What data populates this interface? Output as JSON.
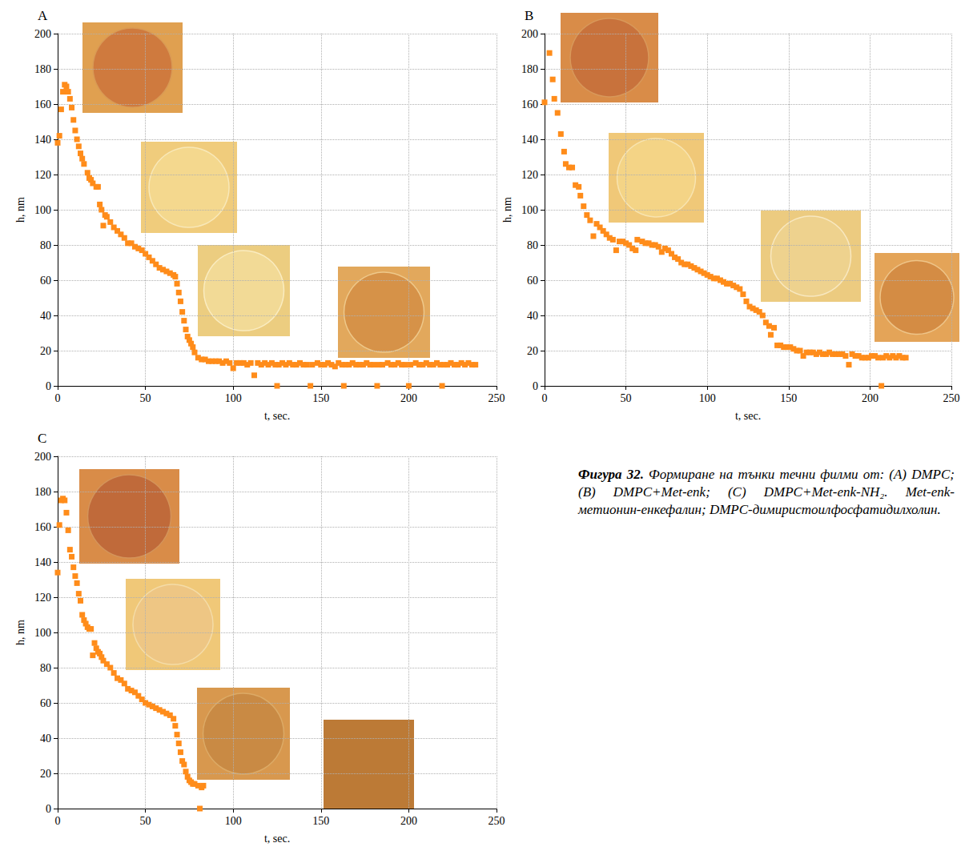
{
  "chart_data": [
    {
      "type": "scatter",
      "title": "A",
      "x_label": "t, sec.",
      "y_label": "h, nm",
      "xlim": [
        0,
        250
      ],
      "xticks": [
        0,
        50,
        100,
        150,
        200,
        250
      ],
      "ylim": [
        0,
        200
      ],
      "yticks": [
        0,
        20,
        40,
        60,
        80,
        100,
        120,
        140,
        160,
        180,
        200
      ],
      "grid": true,
      "marker": "square",
      "color": "#ff8c1a",
      "x": [
        0,
        1,
        2,
        3,
        4,
        5,
        6,
        7,
        8,
        9,
        10,
        11,
        12,
        13,
        14,
        15,
        17,
        18,
        19,
        20,
        22,
        23,
        24,
        25,
        26,
        27,
        28,
        30,
        32,
        34,
        36,
        38,
        40,
        42,
        44,
        46,
        48,
        50,
        52,
        54,
        56,
        58,
        60,
        62,
        64,
        66,
        67,
        68,
        69,
        70,
        71,
        72,
        73,
        74,
        75,
        76,
        77,
        78,
        80,
        82,
        84,
        86,
        88,
        90,
        92,
        94,
        96,
        98,
        100,
        102,
        104,
        106,
        108,
        110,
        112,
        114,
        116,
        118,
        120,
        122,
        124,
        125,
        126,
        128,
        130,
        132,
        134,
        136,
        138,
        140,
        142,
        144,
        145,
        148,
        150,
        152,
        154,
        156,
        158,
        160,
        162,
        163,
        164,
        166,
        168,
        170,
        172,
        174,
        176,
        178,
        180,
        182,
        183,
        185,
        188,
        190,
        192,
        194,
        196,
        198,
        200,
        201,
        204,
        206,
        208,
        210,
        212,
        214,
        216,
        218,
        219,
        220,
        222,
        224,
        226,
        228,
        230,
        232,
        234,
        236,
        238
      ],
      "values": [
        138,
        142,
        157,
        167,
        171,
        170,
        167,
        163,
        158,
        151,
        145,
        140,
        136,
        132,
        129,
        126,
        121,
        118,
        117,
        115,
        113,
        113,
        103,
        100,
        91,
        97,
        96,
        93,
        90,
        88,
        86,
        84,
        81,
        81,
        79,
        78,
        77,
        75,
        73,
        71,
        69,
        67,
        66,
        65,
        64,
        63,
        62,
        58,
        53,
        48,
        42,
        37,
        32,
        28,
        26,
        24,
        22,
        19,
        16,
        15,
        15,
        14,
        14,
        14,
        14,
        13,
        14,
        13,
        10,
        13,
        13,
        13,
        12,
        13,
        6,
        13,
        12,
        13,
        12,
        13,
        12,
        0,
        12,
        13,
        12,
        13,
        12,
        12,
        13,
        12,
        12,
        0,
        12,
        13,
        12,
        12,
        13,
        12,
        11,
        13,
        12,
        0,
        12,
        12,
        13,
        12,
        12,
        12,
        13,
        12,
        12,
        0,
        12,
        12,
        13,
        12,
        12,
        13,
        12,
        12,
        0,
        12,
        13,
        12,
        12,
        13,
        12,
        12,
        13,
        12,
        0,
        12,
        12,
        13,
        12,
        12,
        13,
        12,
        13,
        12,
        12
      ]
    },
    {
      "type": "scatter",
      "title": "B",
      "x_label": "t, sec.",
      "y_label": "h, nm",
      "xlim": [
        0,
        250
      ],
      "xticks": [
        0,
        50,
        100,
        150,
        200,
        250
      ],
      "ylim": [
        0,
        200
      ],
      "yticks": [
        0,
        20,
        40,
        60,
        80,
        100,
        120,
        140,
        160,
        180,
        200
      ],
      "grid": true,
      "marker": "square",
      "color": "#ff8c1a",
      "x": [
        0,
        3,
        5,
        6,
        8,
        10,
        12,
        13,
        15,
        17,
        19,
        21,
        22,
        24,
        26,
        28,
        30,
        32,
        34,
        36,
        38,
        40,
        42,
        44,
        46,
        48,
        50,
        52,
        54,
        56,
        57,
        60,
        62,
        64,
        66,
        68,
        70,
        72,
        74,
        76,
        78,
        80,
        82,
        84,
        86,
        88,
        90,
        92,
        94,
        96,
        98,
        100,
        102,
        104,
        106,
        108,
        110,
        112,
        114,
        116,
        118,
        120,
        122,
        124,
        126,
        128,
        130,
        132,
        134,
        136,
        138,
        139,
        141,
        143,
        145,
        147,
        149,
        151,
        153,
        155,
        157,
        159,
        161,
        163,
        165,
        167,
        169,
        171,
        173,
        175,
        177,
        179,
        181,
        183,
        185,
        187,
        189,
        191,
        193,
        195,
        197,
        199,
        201,
        203,
        205,
        207,
        208,
        210,
        212,
        214,
        216,
        218,
        220,
        222
      ],
      "values": [
        161,
        189,
        174,
        163,
        155,
        143,
        133,
        126,
        124,
        124,
        114,
        113,
        108,
        102,
        97,
        94,
        85,
        92,
        90,
        88,
        86,
        84,
        83,
        77,
        82,
        82,
        81,
        80,
        78,
        77,
        83,
        82,
        81,
        81,
        80,
        80,
        79,
        76,
        78,
        77,
        75,
        73,
        72,
        70,
        69,
        69,
        68,
        67,
        66,
        65,
        64,
        63,
        62,
        61,
        61,
        60,
        59,
        58,
        58,
        57,
        56,
        55,
        52,
        48,
        45,
        44,
        43,
        42,
        40,
        36,
        34,
        29,
        33,
        23,
        23,
        22,
        22,
        22,
        21,
        20,
        20,
        17,
        19,
        19,
        19,
        18,
        19,
        18,
        18,
        19,
        18,
        18,
        18,
        18,
        17,
        12,
        18,
        17,
        17,
        16,
        16,
        16,
        17,
        17,
        16,
        0,
        16,
        17,
        16,
        17,
        16,
        17,
        16,
        16
      ]
    },
    {
      "type": "scatter",
      "title": "C",
      "x_label": "t, sec.",
      "y_label": "h, nm",
      "xlim": [
        0,
        250
      ],
      "xticks": [
        0,
        50,
        100,
        150,
        200,
        250
      ],
      "ylim": [
        0,
        200
      ],
      "yticks": [
        0,
        20,
        40,
        60,
        80,
        100,
        120,
        140,
        160,
        180,
        200
      ],
      "grid": true,
      "marker": "square",
      "color": "#ff8c1a",
      "x": [
        0,
        1,
        2,
        3,
        4,
        5,
        6,
        7,
        8,
        9,
        10,
        11,
        12,
        13,
        14,
        15,
        16,
        17,
        18,
        19,
        20,
        21,
        22,
        23,
        24,
        25,
        26,
        28,
        30,
        32,
        34,
        36,
        38,
        40,
        42,
        44,
        46,
        48,
        50,
        52,
        54,
        56,
        58,
        60,
        62,
        64,
        66,
        67,
        68,
        69,
        70,
        71,
        72,
        73,
        74,
        75,
        76,
        77,
        78,
        80,
        81,
        82,
        83
      ],
      "values": [
        134,
        161,
        175,
        176,
        175,
        168,
        158,
        147,
        143,
        137,
        132,
        128,
        122,
        118,
        110,
        107,
        105,
        103,
        102,
        102,
        87,
        94,
        91,
        89,
        88,
        86,
        84,
        82,
        80,
        77,
        74,
        73,
        71,
        68,
        67,
        66,
        64,
        62,
        60,
        59,
        58,
        57,
        56,
        55,
        54,
        53,
        51,
        47,
        42,
        37,
        32,
        27,
        25,
        21,
        18,
        16,
        15,
        14,
        14,
        13,
        0,
        12,
        13
      ]
    }
  ],
  "caption": {
    "label": "Фигура 32.",
    "text": "Формиране на тънки течни филми от: (A) DMPC; (B) DMPC+Met-enk; (C) DMPC+Met-enk-NH₂. Met-enk-метионин-енкефалин; DMPC-димиристоилфосфатидилхолин."
  }
}
